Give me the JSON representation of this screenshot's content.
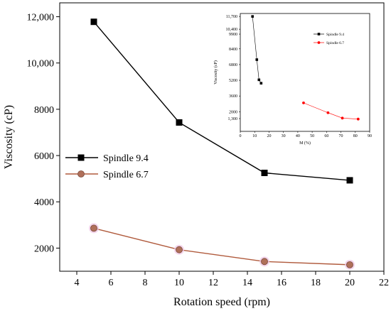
{
  "chart_data": [
    {
      "type": "line",
      "title": "",
      "xlabel": "Rotation speed (rpm)",
      "ylabel": "Viscosity (cP)",
      "xlim": [
        3,
        22
      ],
      "ylim": [
        1000,
        12600
      ],
      "xticks": [
        4,
        6,
        8,
        10,
        12,
        14,
        16,
        18,
        20,
        22
      ],
      "xtick_labels": [
        "4",
        "6",
        "8",
        "10",
        "12",
        "14",
        "16",
        "18",
        "20",
        "22"
      ],
      "yticks": [
        2000,
        4000,
        6000,
        8000,
        10000,
        12000
      ],
      "ytick_labels": [
        "2000",
        "4000",
        "6000",
        "8000",
        "10,000",
        "12,000"
      ],
      "legend_position": "middle-left",
      "series": [
        {
          "name": "Spindle 9.4",
          "color": "#000000",
          "marker": "square",
          "x": [
            5,
            10,
            15,
            20
          ],
          "y": [
            11780,
            7430,
            5250,
            4930
          ]
        },
        {
          "name": "Spindle 6.7",
          "color": "#b0705a",
          "line_color": "#b05a3c",
          "marker": "circle",
          "x": [
            5,
            10,
            15,
            20
          ],
          "y": [
            2860,
            1930,
            1420,
            1280
          ]
        }
      ]
    },
    {
      "type": "line",
      "title": "",
      "xlabel": "M (%)",
      "ylabel": "Viscosity (cP)",
      "xlim": [
        0,
        90
      ],
      "ylim": [
        0,
        12000
      ],
      "xticks": [
        0,
        10,
        20,
        30,
        40,
        50,
        60,
        70,
        80,
        90
      ],
      "xtick_labels": [
        "0",
        "10",
        "20",
        "30",
        "40",
        "50",
        "60",
        "70",
        "80",
        "90"
      ],
      "yticks": [
        1300,
        2000,
        3600,
        5200,
        6800,
        8400,
        9900,
        10400,
        11700
      ],
      "ytick_labels": [
        "1,300",
        "2000",
        "3600",
        "5200",
        "6800",
        "8400",
        "9900",
        "10,400",
        "11,700"
      ],
      "legend_position": "top-right",
      "series": [
        {
          "name": "Spindle 9.4",
          "color": "#000000",
          "marker": "square",
          "x": [
            8.5,
            11.5,
            13,
            14.5
          ],
          "y": [
            11700,
            7300,
            5250,
            4900
          ]
        },
        {
          "name": "Spindle 6.7",
          "color": "#ff0000",
          "marker": "circle",
          "x": [
            44,
            61,
            71,
            82
          ],
          "y": [
            2900,
            1900,
            1350,
            1250
          ]
        }
      ]
    }
  ]
}
